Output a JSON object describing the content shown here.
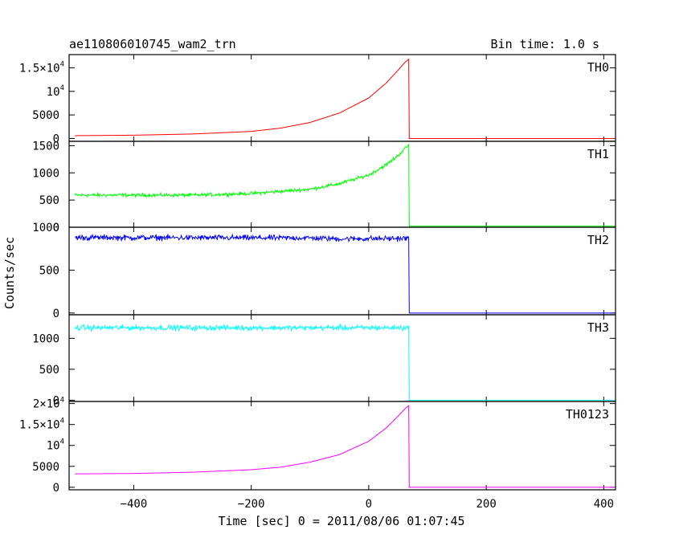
{
  "chart_data": {
    "type": "line",
    "title": "ae110806010745_wam2_trn",
    "subtitle": "Bin time: 1.0 s",
    "xlabel": "Time [sec] 0 = 2011/08/06 01:07:45",
    "ylabel": "Counts/sec",
    "xlim": [
      -510,
      420
    ],
    "x_ticks": [
      -400,
      -200,
      0,
      200,
      400
    ],
    "x_tick_labels": [
      "−400",
      "−200",
      "0",
      "200",
      "400"
    ],
    "grid": false,
    "panels": [
      {
        "name": "TH0",
        "color": "#ff0000",
        "ylim": [
          -600,
          17800
        ],
        "y_ticks": [
          {
            "value": 0,
            "label": "0"
          },
          {
            "value": 5000,
            "label": "5000"
          },
          {
            "value": 10000,
            "label": "10",
            "exp": "4"
          },
          {
            "value": 15000,
            "label": "1.5×10",
            "exp": "4"
          }
        ],
        "points": [
          [
            -500,
            600
          ],
          [
            -400,
            700
          ],
          [
            -300,
            950
          ],
          [
            -200,
            1500
          ],
          [
            -150,
            2200
          ],
          [
            -100,
            3400
          ],
          [
            -50,
            5400
          ],
          [
            0,
            8600
          ],
          [
            30,
            11800
          ],
          [
            50,
            14500
          ],
          [
            62,
            16200
          ],
          [
            68,
            16800
          ],
          [
            69,
            0
          ],
          [
            420,
            0
          ]
        ],
        "noise": 0
      },
      {
        "name": "TH1",
        "color": "#00ff00",
        "ylim": [
          0,
          1580
        ],
        "y_ticks": [
          {
            "value": 0,
            "label": "0"
          },
          {
            "value": 500,
            "label": "500"
          },
          {
            "value": 1000,
            "label": "1000"
          },
          {
            "value": 1500,
            "label": "1500"
          }
        ],
        "points": [
          [
            -500,
            590
          ],
          [
            -300,
            590
          ],
          [
            -200,
            620
          ],
          [
            -100,
            700
          ],
          [
            -50,
            800
          ],
          [
            0,
            960
          ],
          [
            30,
            1150
          ],
          [
            50,
            1320
          ],
          [
            65,
            1480
          ],
          [
            68,
            1520
          ],
          [
            69,
            20
          ],
          [
            420,
            20
          ]
        ],
        "noise": 32
      },
      {
        "name": "TH2",
        "color": "#0000ff",
        "ylim": [
          -20,
          1000
        ],
        "y_ticks": [
          {
            "value": 0,
            "label": "0"
          },
          {
            "value": 500,
            "label": "500"
          },
          {
            "value": 1000,
            "label": "1000"
          }
        ],
        "points": [
          [
            -500,
            880
          ],
          [
            -100,
            875
          ],
          [
            -50,
            865
          ],
          [
            68,
            870
          ],
          [
            69,
            0
          ],
          [
            420,
            0
          ]
        ],
        "noise": 32
      },
      {
        "name": "TH3",
        "color": "#00ffff",
        "ylim": [
          -20,
          1380
        ],
        "y_ticks": [
          {
            "value": 0,
            "label": "0"
          },
          {
            "value": 500,
            "label": "500"
          },
          {
            "value": 1000,
            "label": "1000"
          }
        ],
        "points": [
          [
            -500,
            1170
          ],
          [
            68,
            1170
          ],
          [
            69,
            0
          ],
          [
            420,
            0
          ]
        ],
        "noise": 42
      },
      {
        "name": "TH0123",
        "color": "#ff00ff",
        "ylim": [
          -600,
          20500
        ],
        "y_ticks": [
          {
            "value": 0,
            "label": "0"
          },
          {
            "value": 5000,
            "label": "5000"
          },
          {
            "value": 10000,
            "label": "10",
            "exp": "4"
          },
          {
            "value": 15000,
            "label": "1.5×10",
            "exp": "4"
          },
          {
            "value": 20000,
            "label": "2×10",
            "exp": "4"
          }
        ],
        "points": [
          [
            -500,
            3200
          ],
          [
            -400,
            3300
          ],
          [
            -300,
            3600
          ],
          [
            -200,
            4200
          ],
          [
            -150,
            4800
          ],
          [
            -100,
            6000
          ],
          [
            -50,
            7800
          ],
          [
            0,
            11000
          ],
          [
            30,
            14200
          ],
          [
            50,
            17000
          ],
          [
            62,
            18800
          ],
          [
            68,
            19500
          ],
          [
            69,
            0
          ],
          [
            420,
            0
          ]
        ],
        "noise": 0
      }
    ]
  }
}
